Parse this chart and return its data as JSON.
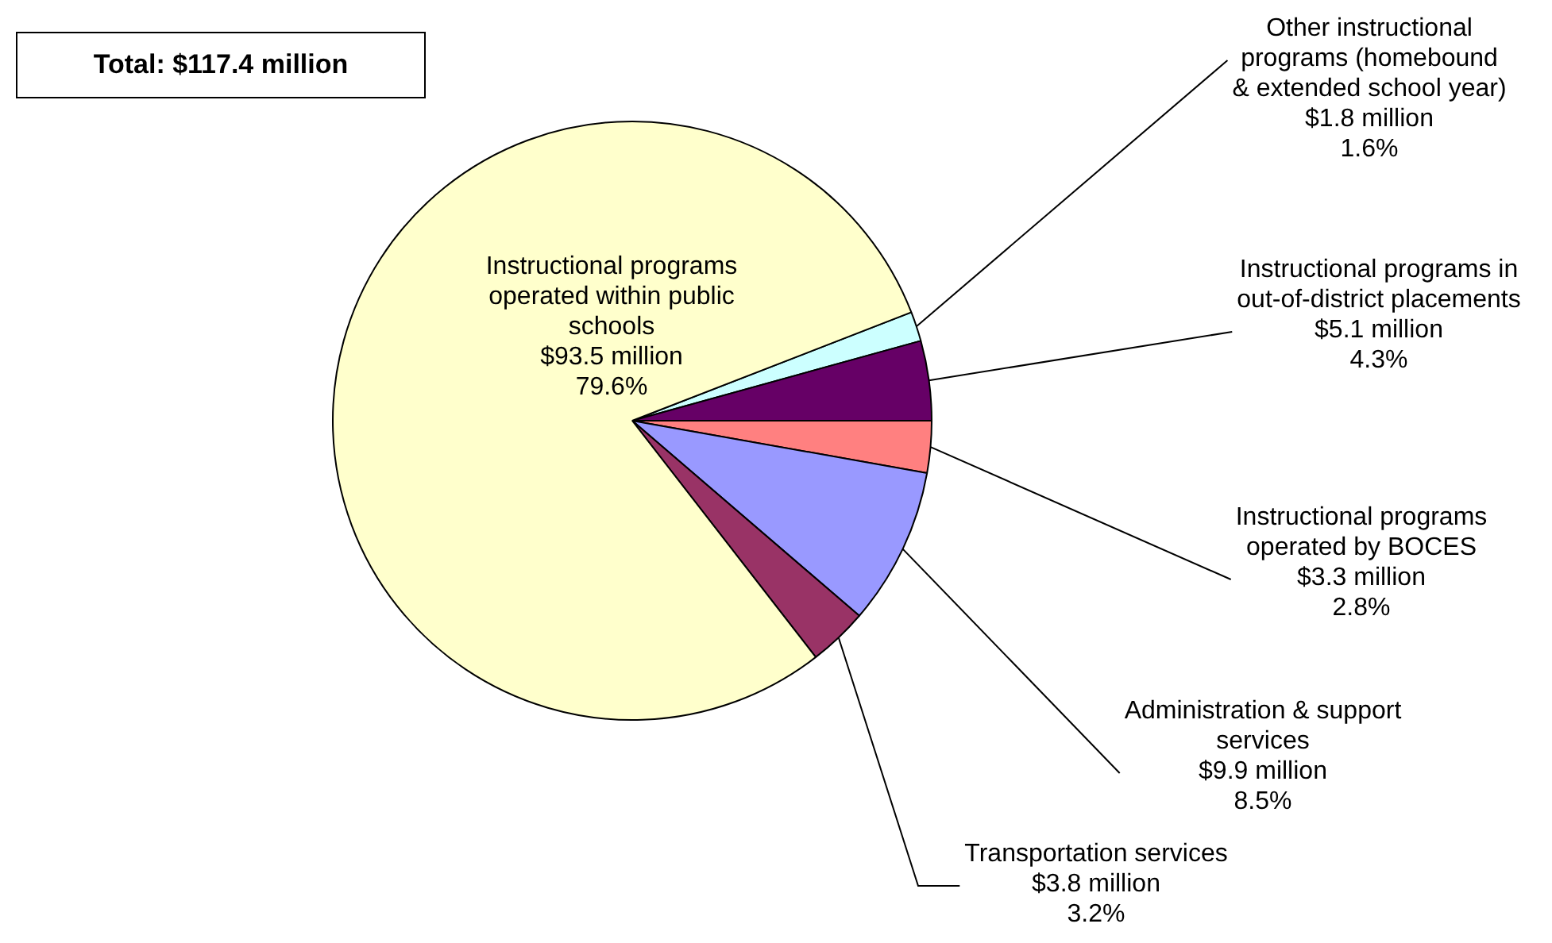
{
  "chart_data": {
    "type": "pie",
    "title": "Total: $117.4 million",
    "categories": [
      "Other instructional programs (homebound & extended school year)",
      "Instructional programs in out-of-district placements",
      "Instructional programs operated by BOCES",
      "Administration & support services",
      "Transportation services",
      "Instructional programs operated within public schools"
    ],
    "values": [
      1.6,
      4.3,
      2.8,
      8.5,
      3.2,
      79.6
    ],
    "value_labels": [
      "$1.8 million 1.6%",
      "$5.1 million 4.3%",
      "$3.3 million 2.8%",
      "$9.9 million 8.5%",
      "$3.8 million 3.2%",
      "$93.5 million 79.6%"
    ],
    "colors": [
      "#ccffff",
      "#660066",
      "#ff8080",
      "#9999ff",
      "#993366",
      "#ffffcc"
    ],
    "legend": false
  }
}
